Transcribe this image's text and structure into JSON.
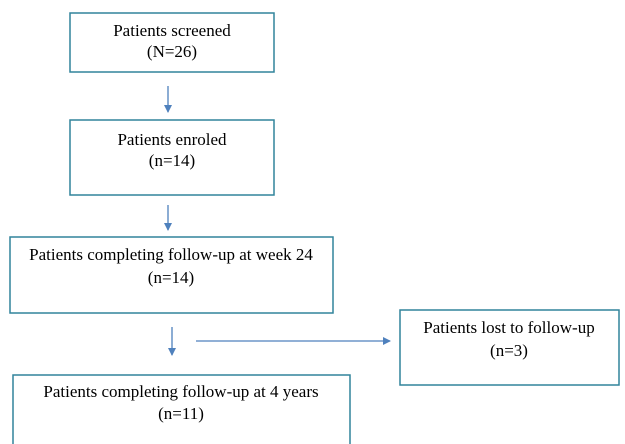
{
  "nodes": [
    {
      "label": "Patients screened",
      "count": "(N=26)"
    },
    {
      "label": "Patients enroled",
      "count": "(n=14)"
    },
    {
      "label": "Patients completing follow-up at week 24",
      "count": "(n=14)"
    },
    {
      "label": "Patients lost to follow-up",
      "count": "(n=3)"
    },
    {
      "label": "Patients completing follow-up at 4 years",
      "count": "(n=11)"
    }
  ]
}
